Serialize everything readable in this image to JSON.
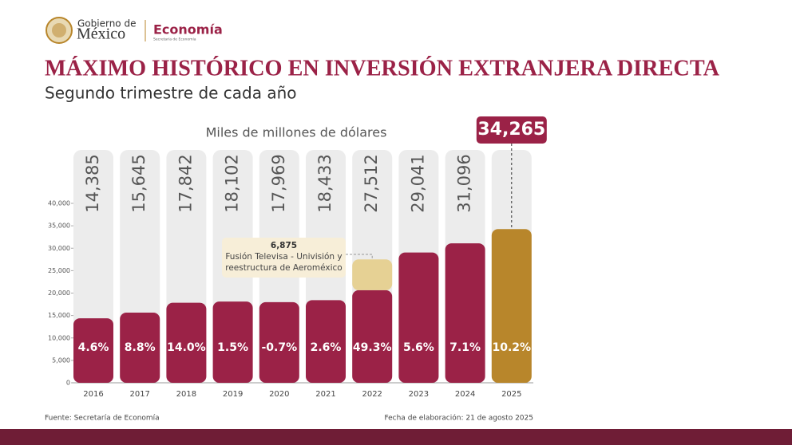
{
  "header": {
    "gov_top": "Gobierno de",
    "gov_main": "México",
    "dept": "Economía",
    "dept_sub": "Secretaría de Economía"
  },
  "chart_data": {
    "type": "bar",
    "title": "MÁXIMO HISTÓRICO EN INVERSIÓN EXTRANJERA DIRECTA",
    "subtitle": "Segundo trimestre de cada año",
    "y_label": "Miles de millones de dólares",
    "categories": [
      "2016",
      "2017",
      "2018",
      "2019",
      "2020",
      "2021",
      "2022",
      "2023",
      "2024",
      "2025"
    ],
    "series": [
      {
        "colors": [
          "#9b2247",
          "#9b2247",
          "#9b2247",
          "#9b2247",
          "#9b2247",
          "#9b2247",
          "#9b2247",
          "#9b2247",
          "#9b2247",
          "#b8862b"
        ],
        "values": [
          14385,
          15645,
          17842,
          18102,
          17969,
          18433,
          20637,
          29041,
          31096,
          34265
        ]
      },
      {
        "name": "Fusión Televisa - Univisión y reestructura de Aeroméxico",
        "color": "#e6d194",
        "values": [
          null,
          null,
          null,
          null,
          null,
          null,
          6875,
          null,
          null,
          null
        ],
        "value_labels": [
          null,
          null,
          null,
          null,
          null,
          null,
          "6,875",
          null,
          null,
          null
        ]
      }
    ],
    "totals": {
      "values": [
        14385,
        15645,
        17842,
        18102,
        17969,
        18433,
        27512,
        29041,
        31096,
        34265
      ],
      "value_labels": [
        "14,385",
        "15,645",
        "17,842",
        "18,102",
        "17,969",
        "18,433",
        "27,512",
        "29,041",
        "31,096",
        "34,265"
      ]
    },
    "growth": {
      "values": [
        4.6,
        8.8,
        14.0,
        1.5,
        -0.7,
        2.6,
        49.3,
        5.6,
        7.1,
        10.2
      ],
      "value_labels": [
        "4.6%",
        "8.8%",
        "14.0%",
        "1.5%",
        "-0.7%",
        "2.6%",
        "49.3%",
        "5.6%",
        "7.1%",
        "10.2%"
      ]
    },
    "ylim": [
      0,
      40000
    ],
    "yticks": [
      0,
      {
        "value": 5000,
        "label": "5,000"
      },
      {
        "value": 10000,
        "label": "10,000"
      },
      {
        "value": 15000,
        "label": "15,000"
      },
      {
        "value": 20000,
        "label": "20,000"
      },
      {
        "value": 25000,
        "label": "25,000"
      },
      {
        "value": 30000,
        "label": "30,000"
      },
      {
        "value": 35000,
        "label": "35,000"
      },
      {
        "value": 40000,
        "label": "40,000"
      }
    ]
  },
  "footer": {
    "source": "Fuente: Secretaría de Economía",
    "date": "Fecha de elaboración: 21 de agosto 2025"
  }
}
